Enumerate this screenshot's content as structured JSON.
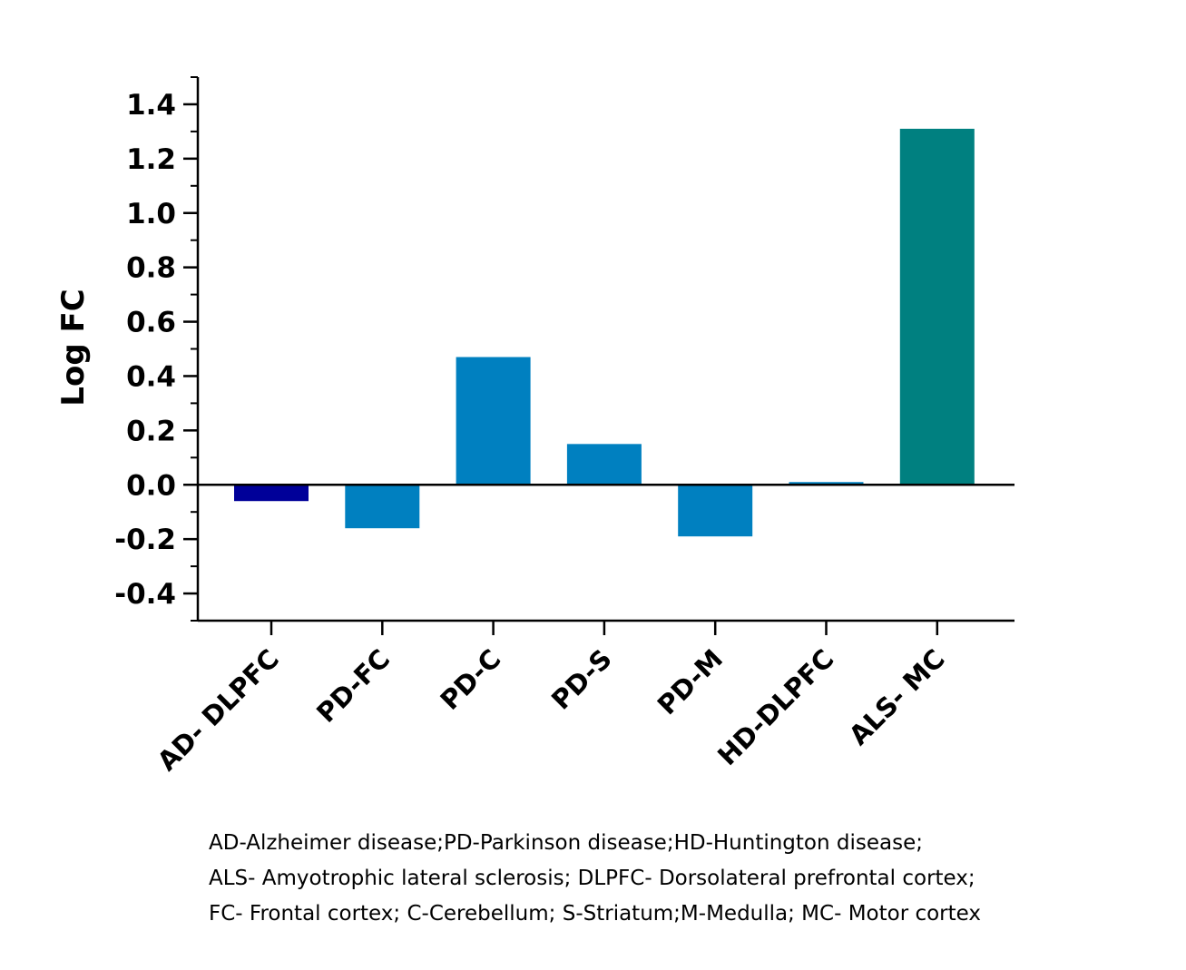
{
  "chart_data": {
    "type": "bar",
    "categories": [
      "AD- DLPFC",
      "PD-FC",
      "PD-C",
      "PD-S",
      "PD-M",
      "HD-DLPFC",
      "ALS- MC"
    ],
    "values": [
      -0.06,
      -0.16,
      0.47,
      0.15,
      -0.19,
      0.01,
      1.31
    ],
    "colors": [
      "#000099",
      "#0080c0",
      "#0080c0",
      "#0080c0",
      "#0080c0",
      "#0080c0",
      "#008080"
    ],
    "title": "",
    "xlabel": "",
    "ylabel": "Log FC",
    "ylim": [
      -0.5,
      1.5
    ],
    "yticks": [
      1.4,
      1.2,
      1.0,
      0.8,
      0.6,
      0.4,
      0.2,
      0.0,
      -0.2,
      -0.4
    ],
    "ytick_labels": [
      "1.4",
      "1.2",
      "1.0",
      "0.8",
      "0.6",
      "0.4",
      "0.2",
      "0.0",
      "-0.2",
      "-0.4"
    ],
    "minor_tick_step": 0.1,
    "grid": false,
    "legend": "none"
  },
  "footnote": {
    "lines": [
      "AD-Alzheimer disease;PD-Parkinson disease;HD-Huntington disease;",
      "ALS- Amyotrophic lateral sclerosis; DLPFC- Dorsolateral prefrontal cortex;",
      "FC- Frontal cortex; C-Cerebellum; S-Striatum;M-Medulla; MC- Motor cortex"
    ]
  }
}
